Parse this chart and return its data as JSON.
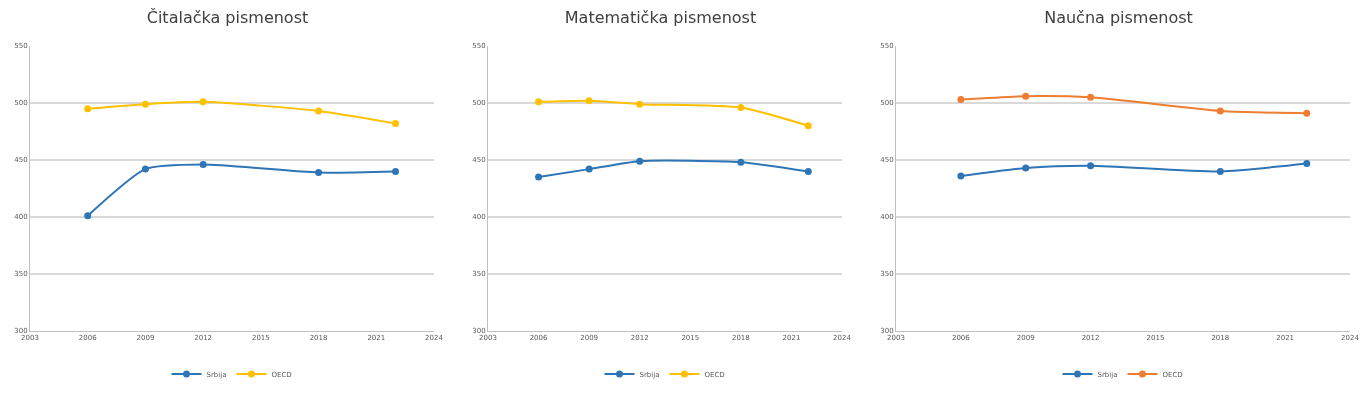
{
  "chart_data": [
    {
      "type": "line",
      "title": "Čitalačka pismenost",
      "x": [
        2006,
        2009,
        2012,
        2018,
        2022
      ],
      "series": [
        {
          "name": "Srbija",
          "color": "#2e75b6",
          "values": [
            401,
            442,
            446,
            439,
            440
          ]
        },
        {
          "name": "OECD",
          "color": "#ffc000",
          "values": [
            495,
            499,
            501,
            493,
            482
          ]
        }
      ],
      "xlim": [
        2003,
        2024
      ],
      "xticks": [
        2003,
        2006,
        2009,
        2012,
        2015,
        2018,
        2021,
        2024
      ],
      "ylim": [
        300,
        550
      ],
      "yticks": [
        300,
        350,
        400,
        450,
        500,
        550
      ],
      "grid": "y",
      "legend": "bottom",
      "marker": "circle",
      "line_style": "solid"
    },
    {
      "type": "line",
      "title": "Matematička pismenost",
      "x": [
        2006,
        2009,
        2012,
        2018,
        2022
      ],
      "series": [
        {
          "name": "Srbija",
          "color": "#2e75b6",
          "values": [
            435,
            442,
            449,
            448,
            440
          ]
        },
        {
          "name": "OECD",
          "color": "#ffc000",
          "values": [
            501,
            502,
            499,
            496,
            480
          ]
        }
      ],
      "xlim": [
        2003,
        2024
      ],
      "xticks": [
        2003,
        2006,
        2009,
        2012,
        2015,
        2018,
        2021,
        2024
      ],
      "ylim": [
        300,
        550
      ],
      "yticks": [
        300,
        350,
        400,
        450,
        500,
        550
      ],
      "grid": "y",
      "legend": "bottom",
      "marker": "circle",
      "line_style": "solid"
    },
    {
      "type": "line",
      "title": "Naučna pismenost",
      "x": [
        2006,
        2009,
        2012,
        2018,
        2022
      ],
      "series": [
        {
          "name": "Srbija",
          "color": "#2e75b6",
          "values": [
            436,
            443,
            445,
            440,
            447
          ]
        },
        {
          "name": "OECD",
          "color": "#ed7d31",
          "values": [
            503,
            506,
            505,
            493,
            491
          ]
        }
      ],
      "xlim": [
        2003,
        2024
      ],
      "xticks": [
        2003,
        2006,
        2009,
        2012,
        2015,
        2018,
        2021,
        2024
      ],
      "ylim": [
        300,
        550
      ],
      "yticks": [
        300,
        350,
        400,
        450,
        500,
        550
      ],
      "grid": "y",
      "legend": "bottom",
      "marker": "circle",
      "line_style": "solid"
    }
  ]
}
